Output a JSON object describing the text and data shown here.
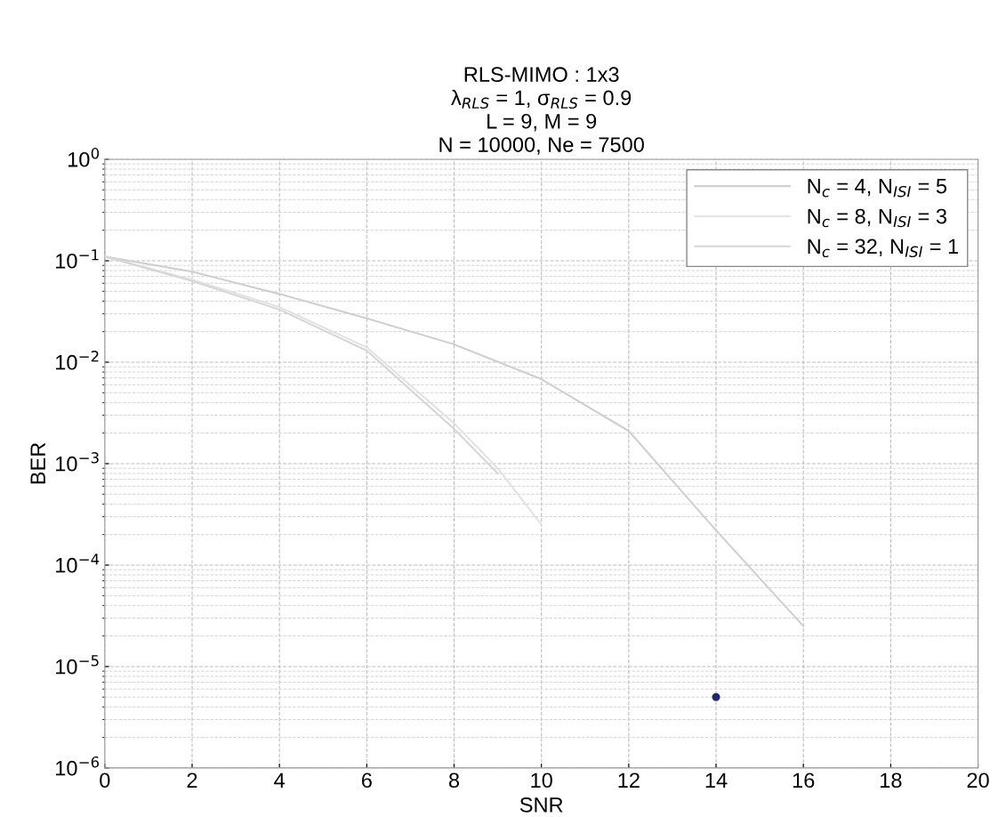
{
  "chart_data": {
    "type": "line",
    "title": "RLS-MIMO : 1x3\nλ$_{RLS}$ = 1, σ$_{RLS}$ = 0.9\nL = 9, M = 9\nN = 10000, Ne = 7500",
    "xlabel": "SNR",
    "ylabel": "BER",
    "log": "y",
    "grid": true,
    "legend": "top right",
    "marker": "none",
    "line_style": "solid",
    "xlim": [
      0,
      20
    ],
    "xticks": [
      0,
      2,
      4,
      6,
      8,
      10,
      12,
      14,
      16,
      18,
      20
    ],
    "ylim": [
      1e-06,
      1
    ],
    "yticks": [
      {
        "value": 1e-06,
        "label": "10$^{−6}$"
      },
      {
        "value": 1e-05,
        "label": "10$^{−5}$"
      },
      {
        "value": 0.0001,
        "label": "10$^{−4}$"
      },
      {
        "value": 0.001,
        "label": "10$^{−3}$"
      },
      {
        "value": 0.01,
        "label": "10$^{−2}$"
      },
      {
        "value": 0.1,
        "label": "10$^{−1}$"
      },
      {
        "value": 1,
        "label": "10$^{0}$"
      }
    ],
    "series": [
      {
        "name": "N$_{c}$ = 4, N$_{ISI}$ = 5",
        "color": "#cfcfcf",
        "x": [
          0,
          2,
          4,
          6,
          8,
          10,
          12,
          14,
          16
        ],
        "values": [
          0.11,
          0.078,
          0.047,
          0.027,
          0.015,
          0.0068,
          0.0021,
          0.00022,
          2.5e-05
        ]
      },
      {
        "name": "N$_{c}$ = 8, N$_{ISI}$ = 3",
        "color": "#e2e2e2",
        "x": [
          0,
          2,
          4,
          6,
          8,
          9,
          10
        ],
        "values": [
          0.11,
          0.065,
          0.035,
          0.014,
          0.0025,
          0.0009,
          0.00025
        ]
      },
      {
        "name": "N$_{c}$ = 32, N$_{ISI}$ = 1",
        "color": "#d6d6d6",
        "x": [
          0,
          2,
          4,
          6,
          8,
          9
        ],
        "values": [
          0.11,
          0.063,
          0.033,
          0.013,
          0.0022,
          0.0008
        ]
      },
      {
        "type": "scatter",
        "marker": "circle",
        "color": "#1f2a6b",
        "x": [
          14
        ],
        "values": [
          5e-06
        ]
      }
    ]
  }
}
